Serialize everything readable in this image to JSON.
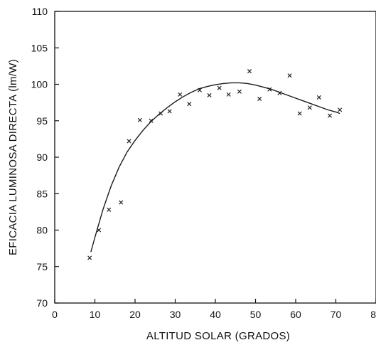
{
  "chart_data": {
    "type": "scatter",
    "xlabel": "ALTITUD SOLAR (GRADOS)",
    "ylabel": "EFICACIA  LUMINOSA  DIRECTA  (lm/W)",
    "xlim": [
      0,
      80
    ],
    "ylim": [
      70,
      110
    ],
    "x_ticks": [
      0,
      10,
      20,
      30,
      40,
      50,
      60,
      70,
      80
    ],
    "y_ticks": [
      70,
      75,
      80,
      85,
      90,
      95,
      100,
      105,
      110
    ],
    "grid": false,
    "legend": "none",
    "marker": "x",
    "series": [
      {
        "points": [
          {
            "x": 8.7,
            "y": 76.2
          },
          {
            "x": 11.0,
            "y": 80.0
          },
          {
            "x": 13.5,
            "y": 82.8
          },
          {
            "x": 16.5,
            "y": 83.8
          },
          {
            "x": 18.5,
            "y": 92.2
          },
          {
            "x": 21.2,
            "y": 95.1
          },
          {
            "x": 24.0,
            "y": 95.0
          },
          {
            "x": 26.4,
            "y": 96.0
          },
          {
            "x": 28.6,
            "y": 96.3
          },
          {
            "x": 31.2,
            "y": 98.6
          },
          {
            "x": 33.5,
            "y": 97.3
          },
          {
            "x": 36.1,
            "y": 99.2
          },
          {
            "x": 38.5,
            "y": 98.5
          },
          {
            "x": 41.0,
            "y": 99.5
          },
          {
            "x": 43.3,
            "y": 98.6
          },
          {
            "x": 46.0,
            "y": 99.0
          },
          {
            "x": 48.5,
            "y": 101.8
          },
          {
            "x": 51.0,
            "y": 98.0
          },
          {
            "x": 53.5,
            "y": 99.3
          },
          {
            "x": 56.0,
            "y": 98.8
          },
          {
            "x": 58.5,
            "y": 101.2
          },
          {
            "x": 61.0,
            "y": 96.0
          },
          {
            "x": 63.5,
            "y": 96.8
          },
          {
            "x": 65.8,
            "y": 98.2
          },
          {
            "x": 68.5,
            "y": 95.7
          },
          {
            "x": 71.0,
            "y": 96.5
          }
        ]
      }
    ],
    "fit_curve": {
      "type": "line",
      "points": [
        {
          "x": 9,
          "y": 77.0
        },
        {
          "x": 10,
          "y": 79.0
        },
        {
          "x": 12,
          "y": 82.8
        },
        {
          "x": 14,
          "y": 86.0
        },
        {
          "x": 16,
          "y": 88.6
        },
        {
          "x": 18,
          "y": 90.7
        },
        {
          "x": 20,
          "y": 92.3
        },
        {
          "x": 22,
          "y": 93.7
        },
        {
          "x": 24,
          "y": 94.9
        },
        {
          "x": 26,
          "y": 95.9
        },
        {
          "x": 28,
          "y": 96.8
        },
        {
          "x": 30,
          "y": 97.6
        },
        {
          "x": 32,
          "y": 98.3
        },
        {
          "x": 34,
          "y": 98.9
        },
        {
          "x": 36,
          "y": 99.4
        },
        {
          "x": 38,
          "y": 99.7
        },
        {
          "x": 40,
          "y": 99.95
        },
        {
          "x": 42,
          "y": 100.1
        },
        {
          "x": 44,
          "y": 100.2
        },
        {
          "x": 46,
          "y": 100.2
        },
        {
          "x": 48,
          "y": 100.1
        },
        {
          "x": 50,
          "y": 99.9
        },
        {
          "x": 52,
          "y": 99.6
        },
        {
          "x": 54,
          "y": 99.3
        },
        {
          "x": 56,
          "y": 98.9
        },
        {
          "x": 58,
          "y": 98.5
        },
        {
          "x": 60,
          "y": 98.1
        },
        {
          "x": 62,
          "y": 97.7
        },
        {
          "x": 64,
          "y": 97.3
        },
        {
          "x": 66,
          "y": 96.9
        },
        {
          "x": 68,
          "y": 96.5
        },
        {
          "x": 70,
          "y": 96.2
        },
        {
          "x": 71,
          "y": 96.0
        }
      ]
    }
  },
  "colors": {
    "axis": "#111111",
    "marker": "#222222",
    "curve": "#1a1a1a",
    "background": "#ffffff"
  }
}
